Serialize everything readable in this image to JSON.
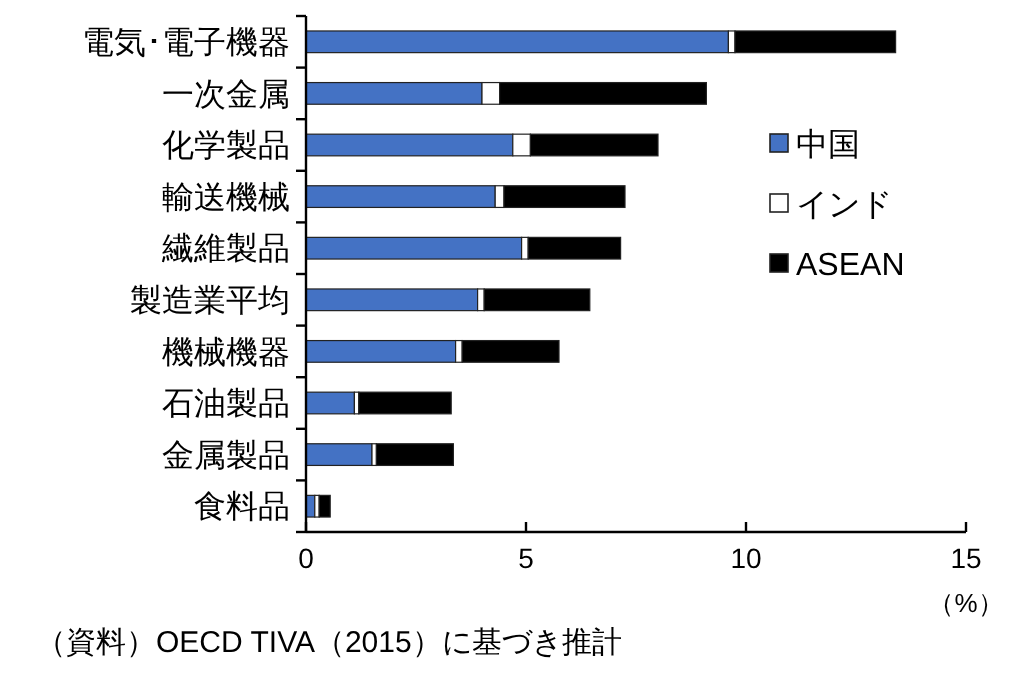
{
  "chart_data": {
    "type": "bar",
    "orientation": "horizontal",
    "stacked": true,
    "categories": [
      "電気･電子機器",
      "一次金属",
      "化学製品",
      "輸送機械",
      "繊維製品",
      "製造業平均",
      "機械機器",
      "石油製品",
      "金属製品",
      "食料品"
    ],
    "series": [
      {
        "name": "中国",
        "color": "#4472c4",
        "values": [
          9.6,
          4.0,
          4.7,
          4.3,
          4.9,
          3.9,
          3.4,
          1.1,
          1.5,
          0.2
        ]
      },
      {
        "name": "インド",
        "color": "#ffffff",
        "values": [
          0.15,
          0.4,
          0.4,
          0.2,
          0.15,
          0.15,
          0.15,
          0.1,
          0.1,
          0.1
        ]
      },
      {
        "name": "ASEAN",
        "color": "#000000",
        "values": [
          3.65,
          4.7,
          2.9,
          2.75,
          2.1,
          2.4,
          2.2,
          2.1,
          1.75,
          0.25
        ]
      }
    ],
    "xlim": [
      0,
      15
    ],
    "xticks": [
      0,
      5,
      10,
      15
    ],
    "xlabel": "（%）",
    "legend": "right",
    "annotations": [
      "（資料）OECD TIVA（2015）に基づき推計"
    ]
  }
}
